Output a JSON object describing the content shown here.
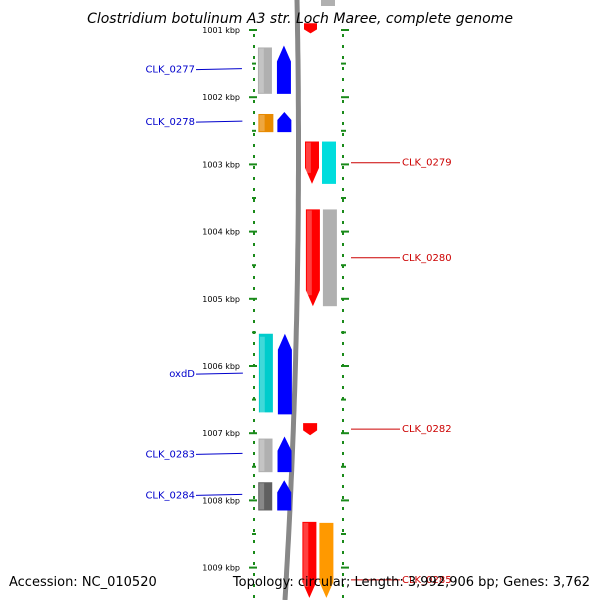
{
  "title": "Clostridium botulinum A3 str. Loch Maree, complete genome",
  "footer": {
    "accession": "Accession: NC_010520",
    "summary": "Topology: circular; Length: 3,992,906 bp; Genes: 3,762"
  },
  "ruler": {
    "start_kbp": 1001,
    "ticks": [
      "1001 kbp",
      "1002 kbp",
      "1003 kbp",
      "1004 kbp",
      "1005 kbp",
      "1006 kbp",
      "1007 kbp",
      "1008 kbp",
      "1009 kbp"
    ]
  },
  "genes_left": [
    {
      "label": "CLK_0277",
      "start_kbp": 1001.23,
      "end_kbp": 1001.95,
      "colors": [
        "#b0b0b0",
        "#0000ff"
      ]
    },
    {
      "label": "CLK_0278",
      "start_kbp": 1002.22,
      "end_kbp": 1002.52,
      "colors": [
        "#e88a00",
        "#0000ff"
      ]
    },
    {
      "label": "oxdD",
      "start_kbp": 1005.52,
      "end_kbp": 1006.72,
      "colors": [
        "#00cccc",
        "#0000ff"
      ]
    },
    {
      "label": "CLK_0283",
      "start_kbp": 1007.05,
      "end_kbp": 1007.58,
      "colors": [
        "#b0b0b0",
        "#0000ff"
      ]
    },
    {
      "label": "CLK_0284",
      "start_kbp": 1007.7,
      "end_kbp": 1008.15,
      "colors": [
        "#606060",
        "#0000ff"
      ]
    }
  ],
  "genes_right": [
    {
      "label": "CLK_0279",
      "start_kbp": 1002.66,
      "end_kbp": 1003.29,
      "colors": [
        "#ff0000",
        "#00dddd"
      ]
    },
    {
      "label": "CLK_0280",
      "start_kbp": 1003.67,
      "end_kbp": 1005.11,
      "colors": [
        "#ff0000",
        "#b0b0b0"
      ]
    },
    {
      "label": "CLK_0282",
      "start_kbp": 1006.85,
      "end_kbp": 1007.03,
      "colors": [
        "#ff0000"
      ]
    },
    {
      "label": "CLK_0285",
      "start_kbp": 1008.32,
      "end_kbp": 1009.45,
      "colors": [
        "#ff0000",
        "#ff9900"
      ]
    }
  ],
  "gene_top_right": {
    "start_kbp": 1000.9,
    "end_kbp": 1001.05,
    "colors": [
      "#ff0000"
    ]
  }
}
